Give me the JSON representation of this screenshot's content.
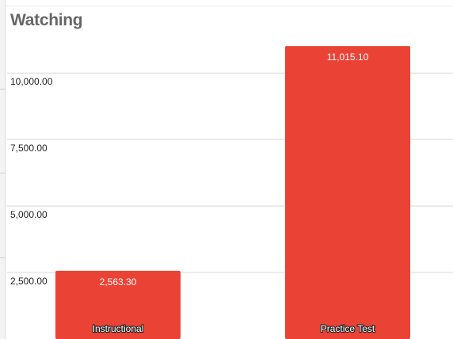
{
  "chart_data": {
    "type": "bar",
    "title": "Watching",
    "categories": [
      "Instructional",
      "Practice Test"
    ],
    "values": [
      2563.3,
      11015.1
    ],
    "value_labels": [
      "2,563.30",
      "11,015.10"
    ],
    "y_ticks": [
      2500,
      5000,
      7500,
      10000
    ],
    "y_tick_labels": [
      "2,500.00",
      "5,000.00",
      "7,500.00",
      "10,000.00"
    ],
    "xlabel": "",
    "ylabel": "",
    "grid": true,
    "bar_color": "#ea4335",
    "gridline_color": "#d9d9d9"
  }
}
